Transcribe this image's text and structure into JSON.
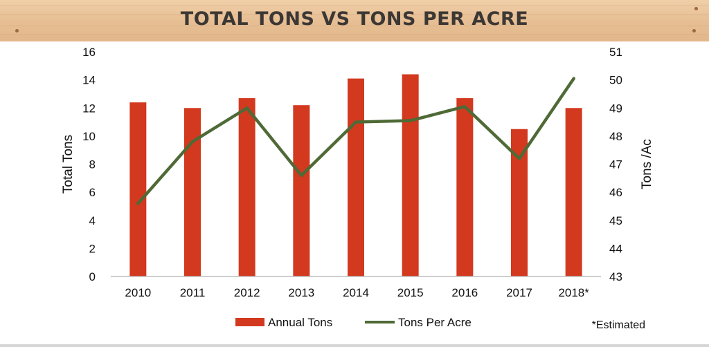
{
  "title": "TOTAL TONS VS TONS PER ACRE",
  "note": "*Estimated",
  "colors": {
    "bar": "#d2391f",
    "line": "#4f6a36",
    "banner": "#e8c096",
    "title": "#3b3734"
  },
  "chart_data": {
    "type": "bar",
    "title": "TOTAL TONS VS TONS PER ACRE",
    "categories": [
      "2010",
      "2011",
      "2012",
      "2013",
      "2014",
      "2015",
      "2016",
      "2017",
      "2018*"
    ],
    "series": [
      {
        "name": "Annual Tons",
        "type": "bar",
        "axis": "left",
        "values": [
          12.4,
          12.0,
          12.7,
          12.2,
          14.1,
          14.4,
          12.7,
          10.5,
          12.0
        ]
      },
      {
        "name": "Tons Per Acre",
        "type": "line",
        "axis": "right",
        "values": [
          45.6,
          47.8,
          49.0,
          46.6,
          48.5,
          48.55,
          49.05,
          47.2,
          50.05
        ]
      }
    ],
    "ylabel": "Total Tons",
    "y2label": "Tons /Ac",
    "ylim": [
      0,
      16
    ],
    "y2lim": [
      43,
      51
    ],
    "yticks": [
      "0",
      "2",
      "4",
      "6",
      "8",
      "10",
      "12",
      "14",
      "16"
    ],
    "y2ticks": [
      "43",
      "44",
      "45",
      "46",
      "47",
      "48",
      "49",
      "50",
      "51"
    ],
    "grid": false,
    "legend": "bottom"
  }
}
